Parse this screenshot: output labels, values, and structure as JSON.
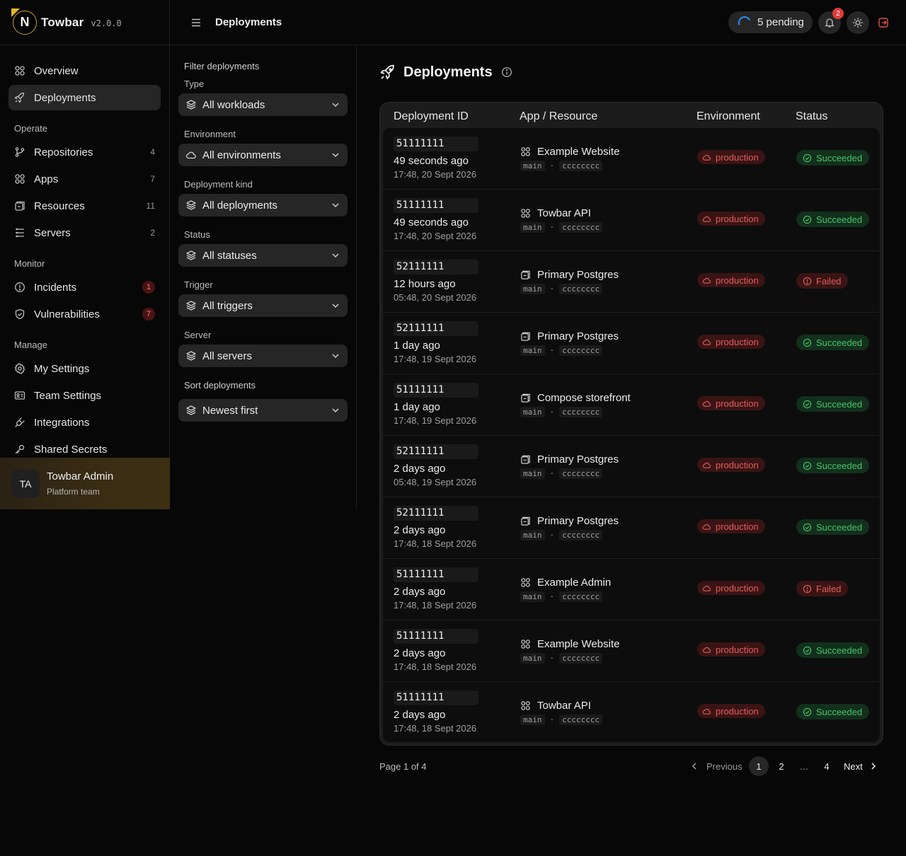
{
  "brand": {
    "logo_letter": "N",
    "name": "Towbar",
    "version": "v2.0.0"
  },
  "sidebar": {
    "top_items": [
      {
        "label": "Overview",
        "icon": "grid-icon"
      },
      {
        "label": "Deployments",
        "icon": "rocket-icon",
        "active": true
      }
    ],
    "sections": [
      {
        "title": "Operate",
        "items": [
          {
            "label": "Repositories",
            "count": "4",
            "icon": "git-branch-icon"
          },
          {
            "label": "Apps",
            "count": "7",
            "icon": "grid-icon"
          },
          {
            "label": "Resources",
            "count": "11",
            "icon": "box-icon"
          },
          {
            "label": "Servers",
            "count": "2",
            "icon": "server-icon"
          }
        ]
      },
      {
        "title": "Monitor",
        "items": [
          {
            "label": "Incidents",
            "badge": "1",
            "icon": "alert-circle-icon"
          },
          {
            "label": "Vulnerabilities",
            "badge": "7",
            "icon": "shield-icon"
          }
        ]
      },
      {
        "title": "Manage",
        "items": [
          {
            "label": "My Settings",
            "icon": "gear-icon"
          },
          {
            "label": "Team Settings",
            "icon": "id-card-icon"
          },
          {
            "label": "Integrations",
            "icon": "plug-icon"
          },
          {
            "label": "Shared Secrets",
            "icon": "key-icon"
          }
        ]
      }
    ],
    "user": {
      "initials": "TA",
      "name": "Towbar Admin",
      "team": "Platform team"
    }
  },
  "topbar": {
    "title": "Deployments",
    "pending_label": "5 pending",
    "notifications_count": "2"
  },
  "filters": {
    "heading": "Filter deployments",
    "groups": [
      {
        "label": "Type",
        "value": "All workloads"
      },
      {
        "label": "Environment",
        "value": "All environments",
        "icon": "cloud-icon"
      },
      {
        "label": "Deployment kind",
        "value": "All deployments"
      },
      {
        "label": "Status",
        "value": "All statuses"
      },
      {
        "label": "Trigger",
        "value": "All triggers"
      },
      {
        "label": "Server",
        "value": "All servers"
      }
    ],
    "sort_heading": "Sort deployments",
    "sort_value": "Newest first"
  },
  "main": {
    "title": "Deployments",
    "columns": [
      "Deployment ID",
      "App / Resource",
      "Environment",
      "Status"
    ],
    "rows": [
      {
        "id": "51111111",
        "ago": "49 seconds ago",
        "when": "17:48, 20 Sept 2026",
        "app": "Example Website",
        "kind": "app",
        "branch": "main",
        "commit": "cccccccc",
        "env": "production",
        "status": "Succeeded"
      },
      {
        "id": "51111111",
        "ago": "49 seconds ago",
        "when": "17:48, 20 Sept 2026",
        "app": "Towbar API",
        "kind": "app",
        "branch": "main",
        "commit": "cccccccc",
        "env": "production",
        "status": "Succeeded"
      },
      {
        "id": "52111111",
        "ago": "12 hours ago",
        "when": "05:48, 20 Sept 2026",
        "app": "Primary Postgres",
        "kind": "resource",
        "branch": "main",
        "commit": "cccccccc",
        "env": "production",
        "status": "Failed"
      },
      {
        "id": "52111111",
        "ago": "1 day ago",
        "when": "17:48, 19 Sept 2026",
        "app": "Primary Postgres",
        "kind": "resource",
        "branch": "main",
        "commit": "cccccccc",
        "env": "production",
        "status": "Succeeded"
      },
      {
        "id": "51111111",
        "ago": "1 day ago",
        "when": "17:48, 19 Sept 2026",
        "app": "Compose storefront",
        "kind": "resource",
        "branch": "main",
        "commit": "cccccccc",
        "env": "production",
        "status": "Succeeded"
      },
      {
        "id": "52111111",
        "ago": "2 days ago",
        "when": "05:48, 19 Sept 2026",
        "app": "Primary Postgres",
        "kind": "resource",
        "branch": "main",
        "commit": "cccccccc",
        "env": "production",
        "status": "Succeeded"
      },
      {
        "id": "52111111",
        "ago": "2 days ago",
        "when": "17:48, 18 Sept 2026",
        "app": "Primary Postgres",
        "kind": "resource",
        "branch": "main",
        "commit": "cccccccc",
        "env": "production",
        "status": "Succeeded"
      },
      {
        "id": "51111111",
        "ago": "2 days ago",
        "when": "17:48, 18 Sept 2026",
        "app": "Example Admin",
        "kind": "app",
        "branch": "main",
        "commit": "cccccccc",
        "env": "production",
        "status": "Failed"
      },
      {
        "id": "51111111",
        "ago": "2 days ago",
        "when": "17:48, 18 Sept 2026",
        "app": "Example Website",
        "kind": "app",
        "branch": "main",
        "commit": "cccccccc",
        "env": "production",
        "status": "Succeeded"
      },
      {
        "id": "51111111",
        "ago": "2 days ago",
        "when": "17:48, 18 Sept 2026",
        "app": "Towbar API",
        "kind": "app",
        "branch": "main",
        "commit": "cccccccc",
        "env": "production",
        "status": "Succeeded"
      }
    ],
    "separator": "·",
    "pagination": {
      "info": "Page 1 of 4",
      "previous": "Previous",
      "next": "Next",
      "pages": [
        "1",
        "2",
        "…",
        "4"
      ],
      "current": "1"
    }
  },
  "colors": {
    "accent_success": "#47c46b",
    "accent_danger": "#e35c5c",
    "brand_gold": "#e5b82a",
    "spinner_blue": "#2f8cff"
  }
}
